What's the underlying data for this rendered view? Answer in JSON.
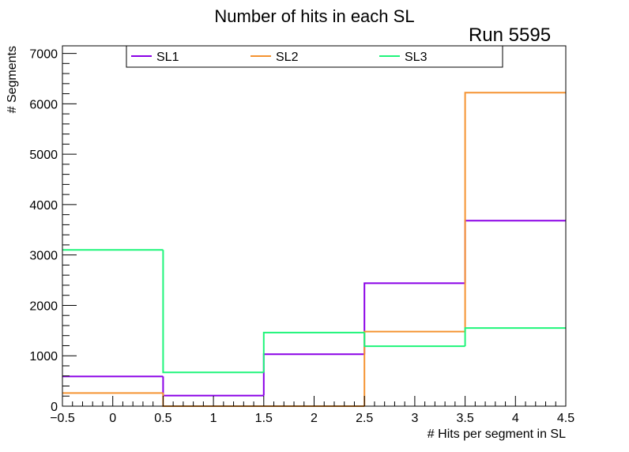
{
  "chart_data": {
    "type": "histogram",
    "title": "Number of hits in each SL",
    "run_label": "Run 5595",
    "xlabel": "# Hits per segment in SL",
    "ylabel": "# Segments",
    "xlim": [
      -0.5,
      4.5
    ],
    "ylim": [
      0,
      7150
    ],
    "x_ticks": [
      -0.5,
      0,
      0.5,
      1,
      1.5,
      2,
      2.5,
      3,
      3.5,
      4,
      4.5
    ],
    "x_tick_labels": [
      "−0.5",
      "0",
      "0.5",
      "1",
      "1.5",
      "2",
      "2.5",
      "3",
      "3.5",
      "4",
      "4.5"
    ],
    "y_ticks": [
      0,
      1000,
      2000,
      3000,
      4000,
      5000,
      6000,
      7000
    ],
    "y_tick_labels": [
      "0",
      "1000",
      "2000",
      "3000",
      "4000",
      "5000",
      "6000",
      "7000"
    ],
    "bin_edges": [
      -0.5,
      0.5,
      1.5,
      2.5,
      3.5,
      4.5
    ],
    "series": [
      {
        "name": "SL1",
        "color": "#8a00e6",
        "values": [
          590,
          210,
          1030,
          2440,
          3680
        ]
      },
      {
        "name": "SL2",
        "color": "#f59331",
        "values": [
          260,
          0,
          0,
          1480,
          6220
        ]
      },
      {
        "name": "SL3",
        "color": "#1ff57a",
        "values": [
          3100,
          670,
          1460,
          1190,
          1550
        ]
      }
    ],
    "legend_position": "top"
  }
}
